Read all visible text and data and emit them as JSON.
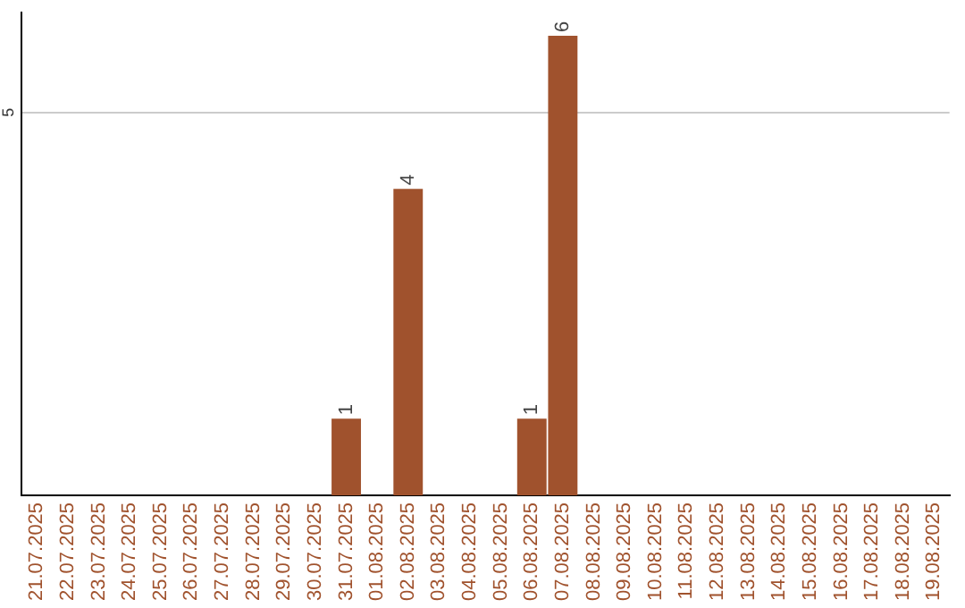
{
  "chart_data": {
    "type": "bar",
    "categories": [
      "21.07.2025",
      "22.07.2025",
      "23.07.2025",
      "24.07.2025",
      "25.07.2025",
      "26.07.2025",
      "27.07.2025",
      "28.07.2025",
      "29.07.2025",
      "30.07.2025",
      "31.07.2025",
      "01.08.2025",
      "02.08.2025",
      "03.08.2025",
      "04.08.2025",
      "05.08.2025",
      "06.08.2025",
      "07.08.2025",
      "08.08.2025",
      "09.08.2025",
      "10.08.2025",
      "11.08.2025",
      "12.08.2025",
      "13.08.2025",
      "14.08.2025",
      "15.08.2025",
      "16.08.2025",
      "17.08.2025",
      "18.08.2025",
      "19.08.2025"
    ],
    "values": [
      0,
      0,
      0,
      0,
      0,
      0,
      0,
      0,
      0,
      0,
      1,
      0,
      4,
      0,
      0,
      0,
      1,
      6,
      0,
      0,
      0,
      0,
      0,
      0,
      0,
      0,
      0,
      0,
      0,
      0
    ],
    "value_labels": [
      null,
      null,
      null,
      null,
      null,
      null,
      null,
      null,
      null,
      null,
      "1",
      null,
      "4",
      null,
      null,
      null,
      "1",
      "6",
      null,
      null,
      null,
      null,
      null,
      null,
      null,
      null,
      null,
      null,
      null,
      null
    ],
    "color": "#a0522d",
    "ylim": [
      0,
      6.3
    ],
    "yticks": [
      5
    ],
    "grid": "y",
    "legend": false
  }
}
